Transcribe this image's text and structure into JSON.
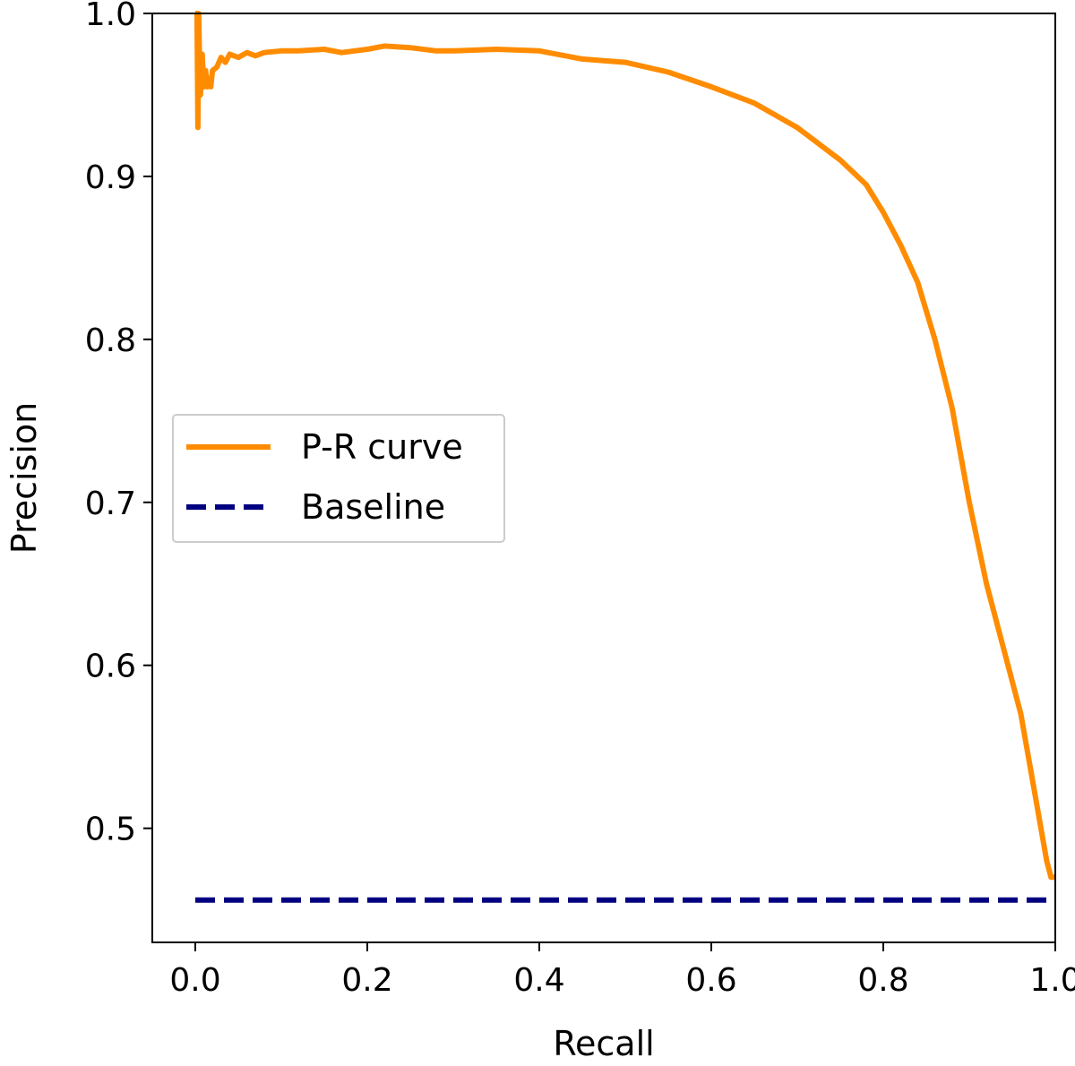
{
  "chart_data": {
    "type": "line",
    "title": "",
    "xlabel": "Recall",
    "ylabel": "Precision",
    "xlim": [
      -0.05,
      1.0
    ],
    "ylim": [
      0.43,
      1.0
    ],
    "xticks": [
      "0.0",
      "0.2",
      "0.4",
      "0.6",
      "0.8",
      "1.0"
    ],
    "xtick_values": [
      0.0,
      0.2,
      0.4,
      0.6,
      0.8,
      1.0
    ],
    "yticks": [
      "0.5",
      "0.6",
      "0.7",
      "0.8",
      "0.9",
      "1.0"
    ],
    "ytick_values": [
      0.5,
      0.6,
      0.7,
      0.8,
      0.9,
      1.0
    ],
    "grid": false,
    "legend_position": "center-left",
    "series": [
      {
        "name": "P-R curve",
        "color": "#ff8c00",
        "style": "solid",
        "x": [
          0.0,
          0.002,
          0.003,
          0.004,
          0.005,
          0.006,
          0.008,
          0.01,
          0.012,
          0.014,
          0.016,
          0.018,
          0.02,
          0.025,
          0.03,
          0.035,
          0.04,
          0.05,
          0.06,
          0.07,
          0.08,
          0.1,
          0.12,
          0.15,
          0.17,
          0.2,
          0.22,
          0.25,
          0.28,
          0.3,
          0.35,
          0.4,
          0.45,
          0.5,
          0.55,
          0.6,
          0.65,
          0.7,
          0.75,
          0.78,
          0.8,
          0.82,
          0.84,
          0.86,
          0.88,
          0.9,
          0.92,
          0.94,
          0.95,
          0.96,
          0.97,
          0.98,
          0.99,
          0.995,
          1.0
        ],
        "y": [
          1.0,
          1.0,
          0.93,
          1.0,
          0.97,
          0.95,
          0.975,
          0.955,
          0.965,
          0.955,
          0.96,
          0.955,
          0.965,
          0.967,
          0.973,
          0.97,
          0.975,
          0.973,
          0.976,
          0.974,
          0.976,
          0.977,
          0.977,
          0.978,
          0.976,
          0.978,
          0.98,
          0.979,
          0.977,
          0.977,
          0.978,
          0.977,
          0.972,
          0.97,
          0.964,
          0.955,
          0.945,
          0.93,
          0.91,
          0.895,
          0.878,
          0.858,
          0.835,
          0.8,
          0.758,
          0.7,
          0.65,
          0.61,
          0.59,
          0.57,
          0.54,
          0.51,
          0.48,
          0.47,
          0.47
        ]
      },
      {
        "name": "Baseline",
        "color": "#000080",
        "style": "dashed",
        "x": [
          0.0,
          1.0
        ],
        "y": [
          0.456,
          0.456
        ]
      }
    ]
  }
}
